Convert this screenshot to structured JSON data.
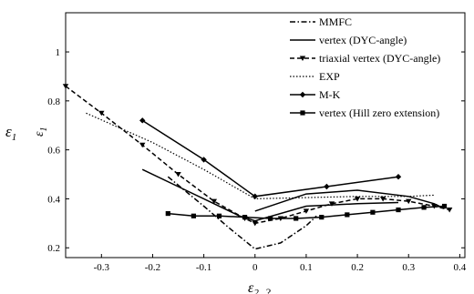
{
  "chart_data": {
    "type": "line",
    "xlim": [
      -0.37,
      0.41
    ],
    "ylim": [
      0.16,
      1.16
    ],
    "xticks": [
      -0.3,
      -0.2,
      -0.1,
      0,
      0.1,
      0.2,
      0.3,
      0.4
    ],
    "xtick_labels": [
      "-0.3",
      "-0.2",
      "-0.1",
      "0",
      "0.1",
      "0.2",
      "0.3",
      "0.4"
    ],
    "yticks": [
      0.2,
      0.4,
      0.6,
      0.8,
      1.0
    ],
    "ytick_labels": [
      "0.2",
      "0.4",
      "0.6",
      "0.8",
      "1"
    ],
    "ylabel_outer": "ε",
    "ylabel_outer_sub": "1",
    "ylabel_inner": "ε",
    "ylabel_inner_sub": "1",
    "xlabel": "ε",
    "xlabel_sub": "2",
    "xlabel_trailing": "?",
    "grid": false,
    "legend_position": "top-right",
    "series": [
      {
        "name": "MMFC",
        "style": "dashdot",
        "marker": "none",
        "color": "#000000",
        "x": [
          -0.17,
          -0.1,
          -0.05,
          0.0,
          0.05,
          0.1,
          0.12
        ],
        "y": [
          0.49,
          0.37,
          0.28,
          0.195,
          0.22,
          0.29,
          0.33
        ]
      },
      {
        "name": "vertex (DYC-angle)",
        "style": "solid",
        "marker": "none",
        "color": "#000000",
        "x": [
          -0.22,
          -0.15,
          -0.08,
          -0.03,
          0.0,
          0.1,
          0.2,
          0.28
        ],
        "y": [
          0.52,
          0.45,
          0.38,
          0.33,
          0.31,
          0.37,
          0.38,
          0.385
        ]
      },
      {
        "name": "triaxial vertex (DYC-angle)",
        "style": "dashed",
        "marker": "triangle-down",
        "color": "#000000",
        "x": [
          -0.37,
          -0.3,
          -0.22,
          -0.15,
          -0.08,
          -0.02,
          0.0,
          0.05,
          0.1,
          0.15,
          0.2,
          0.25,
          0.3,
          0.35,
          0.38
        ],
        "y": [
          0.86,
          0.75,
          0.62,
          0.5,
          0.39,
          0.32,
          0.3,
          0.32,
          0.35,
          0.38,
          0.4,
          0.4,
          0.39,
          0.37,
          0.355
        ]
      },
      {
        "name": "EXP",
        "style": "dotted",
        "marker": "none",
        "color": "#000000",
        "x": [
          -0.33,
          -0.2,
          -0.1,
          0.0,
          0.1,
          0.2,
          0.3,
          0.35
        ],
        "y": [
          0.75,
          0.63,
          0.52,
          0.4,
          0.405,
          0.41,
          0.41,
          0.415
        ]
      },
      {
        "name": "M-K",
        "style": "solid",
        "marker": "diamond",
        "color": "#000000",
        "x": [
          -0.22,
          -0.1,
          0.0,
          0.14,
          0.28
        ],
        "y": [
          0.72,
          0.56,
          0.41,
          0.45,
          0.49
        ]
      },
      {
        "name": "vertex (Hill zero extension)",
        "style": "solid",
        "marker": "square",
        "color": "#000000",
        "x": [
          -0.17,
          -0.12,
          -0.07,
          -0.02,
          0.03,
          0.08,
          0.13,
          0.18,
          0.23,
          0.28,
          0.33,
          0.37
        ],
        "y": [
          0.34,
          0.33,
          0.33,
          0.325,
          0.32,
          0.32,
          0.325,
          0.335,
          0.345,
          0.355,
          0.365,
          0.37
        ]
      },
      {
        "name": "",
        "style": "solid",
        "marker": "none",
        "color": "#000000",
        "x": [
          0.0,
          0.1,
          0.2,
          0.3,
          0.35,
          0.37
        ],
        "y": [
          0.35,
          0.42,
          0.435,
          0.41,
          0.38,
          0.36
        ]
      }
    ]
  }
}
